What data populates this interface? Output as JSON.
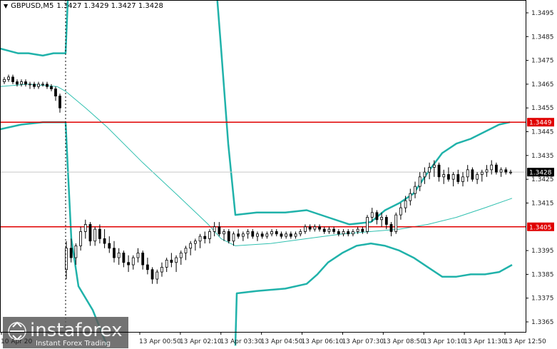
{
  "header": {
    "symbol": "GBPUSD,M5",
    "ohlc": "1.3427 1.3429 1.3427 1.3428"
  },
  "watermark": {
    "brand": "instaforex",
    "tagline": "Instant Forex Trading"
  },
  "colors": {
    "candle": "#000000",
    "level_line": "#e00000",
    "band": "#20b2aa",
    "mid_band": "#30c0b0",
    "axis_bg": "#ffffff",
    "close_label_bg": "#000000"
  },
  "chart_data": {
    "type": "candlestick",
    "ylim": [
      1.3359,
      1.34995
    ],
    "y_ticks": [
      "1.3495",
      "1.3485",
      "1.3475",
      "1.3465",
      "1.3455",
      "1.3445",
      "1.3435",
      "1.3425",
      "1.3415",
      "1.3395",
      "1.3385",
      "1.3375",
      "1.3365"
    ],
    "x_labels": [
      "13 Apr 00:50",
      "13 Apr 02:10",
      "13 Apr 03:30",
      "13 Apr 04:50",
      "13 Apr 06:10",
      "13 Apr 07:30",
      "13 Apr 08:50",
      "13 Apr 10:10",
      "13 Apr 11:30",
      "13 Apr 12:50"
    ],
    "first_time_label_partial": "10 Apr 20",
    "levels": [
      {
        "value": 1.3449,
        "label": "1.3449"
      },
      {
        "value": 1.3405,
        "label": "1.3405"
      }
    ],
    "last_close": {
      "value": 1.3428,
      "label": "1.3428"
    },
    "candles": [
      [
        1.3466,
        1.3468,
        1.3465,
        1.3467
      ],
      [
        1.3467,
        1.3469,
        1.3466,
        1.3468
      ],
      [
        1.3468,
        1.3469,
        1.3465,
        1.3466
      ],
      [
        1.3466,
        1.3467,
        1.3464,
        1.3465
      ],
      [
        1.3465,
        1.3467,
        1.3464,
        1.3466
      ],
      [
        1.3466,
        1.3467,
        1.3464,
        1.3465
      ],
      [
        1.3465,
        1.3466,
        1.3463,
        1.3465
      ],
      [
        1.3465,
        1.3466,
        1.3463,
        1.3464
      ],
      [
        1.3464,
        1.3466,
        1.3463,
        1.3465
      ],
      [
        1.3465,
        1.3466,
        1.3464,
        1.3465
      ],
      [
        1.3465,
        1.3466,
        1.3463,
        1.3464
      ],
      [
        1.3464,
        1.3465,
        1.3462,
        1.3463
      ],
      [
        1.3463,
        1.3464,
        1.3458,
        1.346
      ],
      [
        1.346,
        1.3461,
        1.3453,
        1.3455
      ],
      [
        1.3387,
        1.3399,
        1.3383,
        1.3396
      ],
      [
        1.3396,
        1.34,
        1.339,
        1.3392
      ],
      [
        1.3392,
        1.3398,
        1.3389,
        1.3397
      ],
      [
        1.3397,
        1.3405,
        1.3395,
        1.3403
      ],
      [
        1.3403,
        1.3408,
        1.34,
        1.3406
      ],
      [
        1.3406,
        1.3407,
        1.3397,
        1.3399
      ],
      [
        1.3399,
        1.3405,
        1.3397,
        1.3404
      ],
      [
        1.3404,
        1.3406,
        1.3398,
        1.34
      ],
      [
        1.34,
        1.3404,
        1.3396,
        1.3398
      ],
      [
        1.3398,
        1.3401,
        1.3394,
        1.3396
      ],
      [
        1.3396,
        1.3399,
        1.339,
        1.3392
      ],
      [
        1.3392,
        1.3396,
        1.3389,
        1.3394
      ],
      [
        1.3394,
        1.3395,
        1.3388,
        1.339
      ],
      [
        1.339,
        1.3393,
        1.3386,
        1.3389
      ],
      [
        1.3389,
        1.3393,
        1.3387,
        1.3392
      ],
      [
        1.3392,
        1.3396,
        1.339,
        1.3394
      ],
      [
        1.3394,
        1.3395,
        1.3387,
        1.3389
      ],
      [
        1.3389,
        1.3392,
        1.3385,
        1.3387
      ],
      [
        1.3387,
        1.3388,
        1.3381,
        1.3383
      ],
      [
        1.3383,
        1.3387,
        1.3381,
        1.3386
      ],
      [
        1.3386,
        1.339,
        1.3384,
        1.3388
      ],
      [
        1.3388,
        1.3392,
        1.3386,
        1.3391
      ],
      [
        1.3391,
        1.3394,
        1.3388,
        1.339
      ],
      [
        1.339,
        1.3393,
        1.3386,
        1.3392
      ],
      [
        1.3392,
        1.3395,
        1.3389,
        1.3394
      ],
      [
        1.3394,
        1.3397,
        1.3391,
        1.3396
      ],
      [
        1.3396,
        1.3399,
        1.3393,
        1.3398
      ],
      [
        1.3398,
        1.34,
        1.3395,
        1.3399
      ],
      [
        1.3399,
        1.3402,
        1.3396,
        1.3401
      ],
      [
        1.3401,
        1.3403,
        1.3398,
        1.34
      ],
      [
        1.34,
        1.3404,
        1.3398,
        1.3403
      ],
      [
        1.3403,
        1.3407,
        1.3401,
        1.3405
      ],
      [
        1.3405,
        1.3407,
        1.3401,
        1.3402
      ],
      [
        1.3402,
        1.3404,
        1.3399,
        1.3403
      ],
      [
        1.3403,
        1.3404,
        1.3398,
        1.3399
      ],
      [
        1.3399,
        1.3403,
        1.3397,
        1.3402
      ],
      [
        1.3402,
        1.3404,
        1.34,
        1.3401
      ],
      [
        1.3401,
        1.3403,
        1.3399,
        1.3402
      ],
      [
        1.3402,
        1.3404,
        1.34,
        1.3403
      ],
      [
        1.3403,
        1.3404,
        1.34,
        1.3401
      ],
      [
        1.3401,
        1.3403,
        1.3399,
        1.3402
      ],
      [
        1.3402,
        1.3403,
        1.34,
        1.3401
      ],
      [
        1.3401,
        1.3403,
        1.34,
        1.3402
      ],
      [
        1.3402,
        1.3404,
        1.3401,
        1.3403
      ],
      [
        1.3403,
        1.3404,
        1.3401,
        1.3402
      ],
      [
        1.3402,
        1.3403,
        1.34,
        1.3401
      ],
      [
        1.3401,
        1.3403,
        1.34,
        1.3402
      ],
      [
        1.3402,
        1.3403,
        1.34,
        1.3401
      ],
      [
        1.3401,
        1.3403,
        1.34,
        1.3402
      ],
      [
        1.3402,
        1.3404,
        1.3401,
        1.3403
      ],
      [
        1.3403,
        1.3406,
        1.3402,
        1.3405
      ],
      [
        1.3405,
        1.3406,
        1.3403,
        1.3404
      ],
      [
        1.3404,
        1.3406,
        1.3403,
        1.3405
      ],
      [
        1.3405,
        1.3406,
        1.3403,
        1.3404
      ],
      [
        1.3404,
        1.3405,
        1.3402,
        1.3403
      ],
      [
        1.3403,
        1.3405,
        1.3402,
        1.3404
      ],
      [
        1.3404,
        1.3405,
        1.3402,
        1.3403
      ],
      [
        1.3403,
        1.3404,
        1.3401,
        1.3402
      ],
      [
        1.3402,
        1.3404,
        1.3401,
        1.3403
      ],
      [
        1.3403,
        1.3404,
        1.3401,
        1.3402
      ],
      [
        1.3402,
        1.3404,
        1.3401,
        1.3403
      ],
      [
        1.3403,
        1.3405,
        1.3402,
        1.3404
      ],
      [
        1.3404,
        1.3405,
        1.3402,
        1.3403
      ],
      [
        1.3403,
        1.341,
        1.3402,
        1.3409
      ],
      [
        1.3409,
        1.3413,
        1.3407,
        1.3411
      ],
      [
        1.3411,
        1.3412,
        1.3406,
        1.3408
      ],
      [
        1.3408,
        1.3411,
        1.3405,
        1.3409
      ],
      [
        1.3409,
        1.341,
        1.3404,
        1.3406
      ],
      [
        1.3406,
        1.3407,
        1.3401,
        1.3403
      ],
      [
        1.3403,
        1.3411,
        1.3402,
        1.341
      ],
      [
        1.341,
        1.3415,
        1.3408,
        1.3413
      ],
      [
        1.3413,
        1.3418,
        1.3411,
        1.3416
      ],
      [
        1.3416,
        1.3421,
        1.3414,
        1.3419
      ],
      [
        1.3419,
        1.3424,
        1.3417,
        1.3422
      ],
      [
        1.3422,
        1.3428,
        1.342,
        1.3426
      ],
      [
        1.3426,
        1.343,
        1.3423,
        1.3428
      ],
      [
        1.3428,
        1.3432,
        1.3425,
        1.343
      ],
      [
        1.343,
        1.3433,
        1.3426,
        1.3431
      ],
      [
        1.3431,
        1.3432,
        1.3424,
        1.3426
      ],
      [
        1.3426,
        1.3429,
        1.3423,
        1.3427
      ],
      [
        1.3427,
        1.343,
        1.3424,
        1.3425
      ],
      [
        1.3425,
        1.3428,
        1.3422,
        1.3427
      ],
      [
        1.3427,
        1.3429,
        1.3423,
        1.3424
      ],
      [
        1.3424,
        1.3428,
        1.3422,
        1.3426
      ],
      [
        1.3426,
        1.3431,
        1.3424,
        1.3429
      ],
      [
        1.3429,
        1.343,
        1.3424,
        1.3425
      ],
      [
        1.3425,
        1.3428,
        1.3423,
        1.3427
      ],
      [
        1.3427,
        1.3429,
        1.3424,
        1.3428
      ],
      [
        1.3428,
        1.3431,
        1.3426,
        1.3429
      ],
      [
        1.3429,
        1.3433,
        1.3427,
        1.3431
      ],
      [
        1.3431,
        1.3432,
        1.3427,
        1.3428
      ],
      [
        1.3428,
        1.343,
        1.3426,
        1.3429
      ],
      [
        1.3429,
        1.343,
        1.3427,
        1.3428
      ],
      [
        1.3428,
        1.3429,
        1.3427,
        1.3428
      ]
    ],
    "bands": {
      "upper": [
        [
          0,
          1.348
        ],
        [
          25,
          1.3478
        ],
        [
          40,
          1.3478
        ],
        [
          60,
          1.3477
        ],
        [
          75,
          1.3478
        ],
        [
          92,
          1.3478
        ],
        [
          95,
          1.35
        ],
        [
          100,
          1.352
        ],
        [
          102,
          1.354
        ]
      ],
      "upper_b": [
        [
          290,
          1.355
        ],
        [
          297,
          1.353
        ],
        [
          310,
          1.348
        ],
        [
          320,
          1.344
        ],
        [
          330,
          1.341
        ],
        [
          360,
          1.3411
        ],
        [
          400,
          1.3411
        ],
        [
          430,
          1.3412
        ],
        [
          460,
          1.3409
        ],
        [
          490,
          1.3406
        ],
        [
          520,
          1.3407
        ],
        [
          540,
          1.3412
        ],
        [
          560,
          1.3415
        ],
        [
          580,
          1.3419
        ],
        [
          600,
          1.3428
        ],
        [
          620,
          1.3436
        ],
        [
          640,
          1.344
        ],
        [
          660,
          1.3442
        ],
        [
          680,
          1.3445
        ],
        [
          700,
          1.3448
        ],
        [
          715,
          1.3449
        ]
      ],
      "middle": [
        [
          0,
          1.3464
        ],
        [
          40,
          1.3465
        ],
        [
          80,
          1.3464
        ],
        [
          92,
          1.3462
        ],
        [
          120,
          1.3455
        ],
        [
          150,
          1.3447
        ],
        [
          200,
          1.3432
        ],
        [
          250,
          1.3418
        ],
        [
          292,
          1.3406
        ],
        [
          310,
          1.34
        ],
        [
          330,
          1.3397
        ],
        [
          380,
          1.3398
        ],
        [
          430,
          1.34
        ],
        [
          480,
          1.3402
        ],
        [
          520,
          1.3403
        ],
        [
          560,
          1.3404
        ],
        [
          600,
          1.3406
        ],
        [
          640,
          1.3409
        ],
        [
          680,
          1.3413
        ],
        [
          718,
          1.3417
        ]
      ],
      "lower": [
        [
          0,
          1.3446
        ],
        [
          30,
          1.3448
        ],
        [
          60,
          1.3449
        ],
        [
          92,
          1.3449
        ],
        [
          95,
          1.343
        ],
        [
          100,
          1.34
        ],
        [
          110,
          1.338
        ],
        [
          130,
          1.337
        ],
        [
          150,
          1.3355
        ]
      ],
      "lower_b": [
        [
          330,
          1.3355
        ],
        [
          332,
          1.3377
        ],
        [
          360,
          1.3378
        ],
        [
          400,
          1.3379
        ],
        [
          430,
          1.3381
        ],
        [
          445,
          1.3385
        ],
        [
          460,
          1.339
        ],
        [
          480,
          1.3394
        ],
        [
          500,
          1.3397
        ],
        [
          520,
          1.3398
        ],
        [
          540,
          1.3397
        ],
        [
          560,
          1.3395
        ],
        [
          580,
          1.3392
        ],
        [
          600,
          1.3388
        ],
        [
          620,
          1.3384
        ],
        [
          640,
          1.3384
        ],
        [
          660,
          1.3385
        ],
        [
          680,
          1.3385
        ],
        [
          700,
          1.3386
        ],
        [
          718,
          1.3389
        ]
      ]
    }
  }
}
